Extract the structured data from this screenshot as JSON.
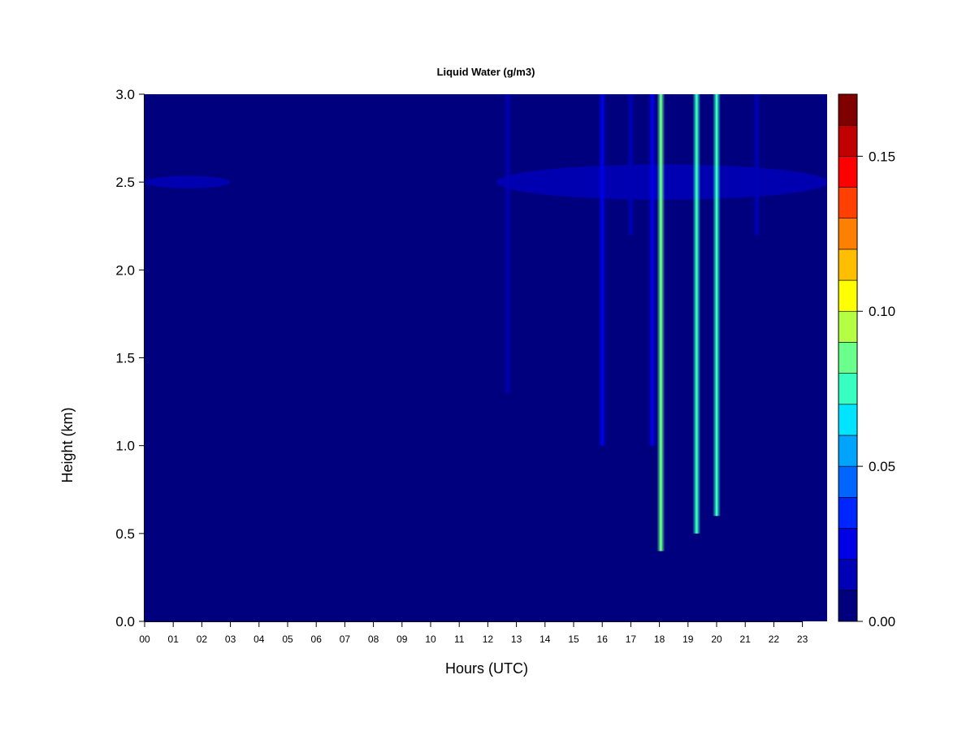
{
  "chart_data": {
    "type": "heatmap",
    "title": "Liquid Water (g/m3)",
    "xlabel": "Hours (UTC)",
    "ylabel": "Height (km)",
    "xlim": [
      0,
      24
    ],
    "ylim": [
      0.0,
      3.0
    ],
    "x_ticks": [
      "00",
      "01",
      "02",
      "03",
      "04",
      "05",
      "06",
      "07",
      "08",
      "09",
      "10",
      "11",
      "12",
      "13",
      "14",
      "15",
      "16",
      "17",
      "18",
      "19",
      "20",
      "21",
      "22",
      "23"
    ],
    "y_ticks": [
      "0.0",
      "0.5",
      "1.0",
      "1.5",
      "2.0",
      "2.5",
      "3.0"
    ],
    "colorbar": {
      "range": [
        0.0,
        0.17
      ],
      "ticks": [
        "0.00",
        "0.05",
        "0.10",
        "0.15"
      ],
      "levels": [
        "#00007f",
        "#0000b4",
        "#0000e6",
        "#0026ff",
        "#0066ff",
        "#00a4ff",
        "#00e4ff",
        "#36ffc1",
        "#6aff8c",
        "#b4ff43",
        "#ffff00",
        "#ffbf00",
        "#ff8000",
        "#ff4000",
        "#ff0000",
        "#c00000",
        "#800000"
      ]
    },
    "features": [
      {
        "kind": "cloud_layer",
        "start_hour": 0.0,
        "end_hour": 3.0,
        "height_km": 2.5,
        "thickness_km": 0.07,
        "value": 0.01
      },
      {
        "kind": "cloud_layer",
        "start_hour": 12.3,
        "end_hour": 23.9,
        "height_km": 2.5,
        "thickness_km": 0.2,
        "value": 0.012
      },
      {
        "kind": "column",
        "hour": 18.05,
        "bottom_km": 0.4,
        "top_km": 3.0,
        "value": 0.09
      },
      {
        "kind": "column",
        "hour": 19.3,
        "bottom_km": 0.5,
        "top_km": 3.0,
        "value": 0.07
      },
      {
        "kind": "column",
        "hour": 20.0,
        "bottom_km": 0.6,
        "top_km": 3.0,
        "value": 0.075
      },
      {
        "kind": "column",
        "hour": 17.75,
        "bottom_km": 1.0,
        "top_km": 3.0,
        "value": 0.025
      },
      {
        "kind": "column",
        "hour": 16.0,
        "bottom_km": 1.0,
        "top_km": 3.0,
        "value": 0.02
      },
      {
        "kind": "column",
        "hour": 17.0,
        "bottom_km": 2.2,
        "top_km": 3.0,
        "value": 0.015
      },
      {
        "kind": "column",
        "hour": 12.7,
        "bottom_km": 1.3,
        "top_km": 3.0,
        "value": 0.012
      },
      {
        "kind": "column",
        "hour": 21.4,
        "bottom_km": 2.2,
        "top_km": 3.0,
        "value": 0.012
      }
    ]
  }
}
